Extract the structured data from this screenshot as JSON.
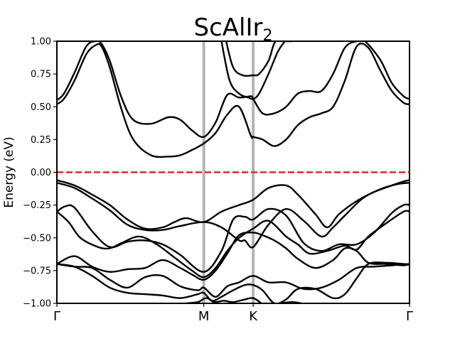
{
  "chart_data": {
    "type": "line",
    "title": "ScAlIr",
    "title_subscript": "2",
    "ylabel": "Energy (eV)",
    "xlabel": "",
    "ylim": [
      -1.0,
      1.0
    ],
    "xlim": [
      0,
      3.0
    ],
    "yticks": [
      "1.00",
      "0.75",
      "0.50",
      "0.25",
      "0.00",
      "−0.25",
      "−0.50",
      "−0.75",
      "−1.00"
    ],
    "ytick_values": [
      1.0,
      0.75,
      0.5,
      0.25,
      0.0,
      -0.25,
      -0.5,
      -0.75,
      -1.0
    ],
    "kpoints": [
      {
        "label": "Γ",
        "x": 0.0
      },
      {
        "label": "M",
        "x": 1.25
      },
      {
        "label": "K",
        "x": 1.67
      },
      {
        "label": "Γ",
        "x": 3.0
      }
    ],
    "fermi_level": 0.0,
    "fermi_color": "#e8251f",
    "kline_color": "#b4b4b4",
    "band_color": "#000000",
    "series": [
      {
        "x": [
          0,
          0.06,
          0.15,
          0.25,
          0.33,
          0.38,
          0.45,
          0.55,
          0.65,
          0.8,
          0.95,
          1.05,
          1.15,
          1.25,
          1.35,
          1.45,
          1.55,
          1.65,
          1.67,
          1.75,
          1.85,
          1.95,
          2.05,
          2.15,
          2.25,
          2.35,
          2.45,
          2.55,
          2.65,
          2.75,
          2.85,
          2.95,
          3.0
        ],
        "y": [
          0.52,
          0.56,
          0.7,
          0.9,
          0.97,
          0.96,
          0.8,
          0.48,
          0.25,
          0.13,
          0.12,
          0.13,
          0.17,
          0.22,
          0.3,
          0.44,
          0.5,
          0.28,
          0.27,
          0.25,
          0.2,
          0.25,
          0.36,
          0.42,
          0.45,
          0.5,
          0.7,
          0.96,
          0.95,
          0.78,
          0.62,
          0.53,
          0.52
        ]
      },
      {
        "x": [
          0,
          0.06,
          0.15,
          0.25,
          0.33,
          0.38,
          0.45,
          0.55,
          0.65,
          0.8,
          0.95,
          1.05,
          1.15,
          1.25,
          1.35,
          1.45,
          1.55,
          1.65,
          1.67,
          1.75,
          1.85,
          1.95,
          2.05,
          2.15,
          2.25,
          2.35,
          2.45,
          2.55,
          2.62,
          2.75,
          2.85,
          2.95,
          3.0
        ],
        "y": [
          0.55,
          0.6,
          0.76,
          0.96,
          1.0,
          0.98,
          0.85,
          0.57,
          0.4,
          0.37,
          0.42,
          0.4,
          0.32,
          0.27,
          0.38,
          0.59,
          0.57,
          0.58,
          0.56,
          0.45,
          0.45,
          0.5,
          0.6,
          0.62,
          0.62,
          0.75,
          0.95,
          1.0,
          1.0,
          0.86,
          0.68,
          0.58,
          0.56
        ]
      },
      {
        "x": [
          1.44,
          1.5,
          1.58,
          1.67,
          1.72,
          1.8,
          1.86,
          1.95,
          2.0
        ],
        "y": [
          1.0,
          0.8,
          0.74,
          0.74,
          0.75,
          0.85,
          1.0,
          1.0,
          1.0
        ]
      },
      {
        "x": [
          1.4,
          1.47,
          1.55,
          1.63,
          1.67,
          1.72,
          1.8,
          1.88,
          1.94
        ],
        "y": [
          1.0,
          0.7,
          0.6,
          0.57,
          0.56,
          0.6,
          0.75,
          0.92,
          1.0
        ]
      },
      {
        "x": [
          0,
          0.15,
          0.3,
          0.45,
          0.6,
          0.75,
          0.9,
          1.0,
          1.1,
          1.25,
          1.4,
          1.55,
          1.67,
          1.8,
          1.95,
          2.05,
          2.2,
          2.3,
          2.4,
          2.55,
          2.7,
          2.85,
          2.95,
          3.0
        ],
        "y": [
          -0.06,
          -0.1,
          -0.17,
          -0.25,
          -0.36,
          -0.43,
          -0.42,
          -0.38,
          -0.35,
          -0.38,
          -0.3,
          -0.25,
          -0.21,
          -0.12,
          -0.1,
          -0.17,
          -0.32,
          -0.42,
          -0.32,
          -0.22,
          -0.15,
          -0.1,
          -0.07,
          -0.06
        ]
      },
      {
        "x": [
          0,
          0.15,
          0.3,
          0.45,
          0.6,
          0.75,
          0.9,
          1.05,
          1.25,
          1.4,
          1.55,
          1.6,
          1.67,
          1.8,
          1.95,
          2.1,
          2.25,
          2.35,
          2.45,
          2.6,
          2.75,
          2.9,
          3.0
        ],
        "y": [
          -0.08,
          -0.12,
          -0.2,
          -0.29,
          -0.4,
          -0.44,
          -0.44,
          -0.41,
          -0.38,
          -0.42,
          -0.52,
          -0.52,
          -0.57,
          -0.4,
          -0.28,
          -0.37,
          -0.49,
          -0.42,
          -0.33,
          -0.2,
          -0.13,
          -0.09,
          -0.08
        ]
      },
      {
        "x": [
          0,
          0.07,
          0.15,
          0.3,
          0.45,
          0.6,
          0.75,
          0.9,
          1.05,
          1.25,
          1.4,
          1.5,
          1.6,
          1.67,
          1.8,
          1.95,
          2.1,
          2.25,
          2.4,
          2.55,
          2.7,
          2.85,
          2.95,
          3.0
        ],
        "y": [
          -0.3,
          -0.26,
          -0.27,
          -0.45,
          -0.57,
          -0.53,
          -0.52,
          -0.55,
          -0.63,
          -0.76,
          -0.6,
          -0.36,
          -0.34,
          -0.36,
          -0.28,
          -0.33,
          -0.54,
          -0.6,
          -0.55,
          -0.55,
          -0.46,
          -0.31,
          -0.25,
          -0.25
        ]
      },
      {
        "x": [
          0,
          0.1,
          0.2,
          0.35,
          0.45,
          0.55,
          0.7,
          0.85,
          1.0,
          1.15,
          1.25,
          1.35,
          1.45,
          1.55,
          1.67,
          1.8,
          1.95,
          2.05,
          2.15,
          2.3,
          2.45,
          2.55,
          2.65,
          2.8,
          2.95,
          3.0
        ],
        "y": [
          -0.3,
          -0.38,
          -0.5,
          -0.57,
          -0.58,
          -0.54,
          -0.49,
          -0.55,
          -0.65,
          -0.75,
          -0.8,
          -0.73,
          -0.6,
          -0.5,
          -0.43,
          -0.37,
          -0.49,
          -0.55,
          -0.62,
          -0.6,
          -0.56,
          -0.59,
          -0.49,
          -0.39,
          -0.3,
          -0.3
        ]
      },
      {
        "x": [
          0,
          0.15,
          0.3,
          0.45,
          0.6,
          0.75,
          0.9,
          1.05,
          1.15,
          1.25,
          1.35,
          1.45,
          1.55,
          1.67,
          1.75,
          1.85,
          1.95,
          2.05,
          2.2,
          2.35,
          2.45,
          2.55,
          2.65,
          2.8,
          2.95,
          3.0
        ],
        "y": [
          -0.7,
          -0.64,
          -0.72,
          -0.76,
          -0.74,
          -0.73,
          -0.67,
          -0.73,
          -0.78,
          -0.82,
          -0.75,
          -0.62,
          -0.48,
          -0.46,
          -0.48,
          -0.52,
          -0.58,
          -0.66,
          -0.73,
          -0.67,
          -0.58,
          -0.6,
          -0.69,
          -0.7,
          -0.71,
          -0.7
        ]
      },
      {
        "x": [
          0,
          0.15,
          0.3,
          0.45,
          0.6,
          0.75,
          0.9,
          1.05,
          1.2,
          1.25,
          1.35,
          1.45,
          1.55,
          1.67,
          1.8,
          1.95,
          2.1,
          2.25,
          2.4,
          2.55,
          2.7,
          2.85,
          3.0
        ],
        "y": [
          -0.7,
          -0.72,
          -0.73,
          -0.82,
          -0.88,
          -0.8,
          -0.79,
          -0.87,
          -0.9,
          -0.88,
          -0.95,
          -0.87,
          -0.84,
          -0.79,
          -0.84,
          -0.84,
          -0.89,
          -0.88,
          -0.82,
          -0.73,
          -0.72,
          -0.71,
          -0.7
        ]
      },
      {
        "x": [
          0,
          0.15,
          0.3,
          0.45,
          0.6,
          0.75,
          0.9,
          1.05,
          1.2,
          1.25,
          1.32,
          1.4,
          1.5,
          1.6,
          1.67,
          1.75,
          1.85,
          1.95,
          2.05,
          2.2,
          2.35,
          2.45,
          2.55,
          2.65,
          2.8,
          2.95,
          3.0
        ],
        "y": [
          -0.7,
          -0.72,
          -0.79,
          -0.88,
          -0.92,
          -0.93,
          -0.94,
          -0.96,
          -0.93,
          -0.92,
          -0.98,
          -0.95,
          -0.9,
          -0.86,
          -0.86,
          -0.9,
          -1.0,
          -0.97,
          -0.89,
          -0.89,
          -0.96,
          -0.93,
          -0.81,
          -0.7,
          -0.69,
          -0.7,
          -0.7
        ]
      },
      {
        "x": [
          1.1,
          1.2,
          1.27,
          1.34,
          1.42,
          1.5,
          1.6,
          1.67,
          1.74
        ],
        "y": [
          -1.0,
          -0.99,
          -0.96,
          -0.99,
          -0.98,
          -0.99,
          -0.97,
          -0.96,
          -1.0
        ]
      },
      {
        "x": [
          1.9,
          2.0,
          2.08
        ],
        "y": [
          -1.0,
          -0.99,
          -1.0
        ]
      }
    ]
  }
}
